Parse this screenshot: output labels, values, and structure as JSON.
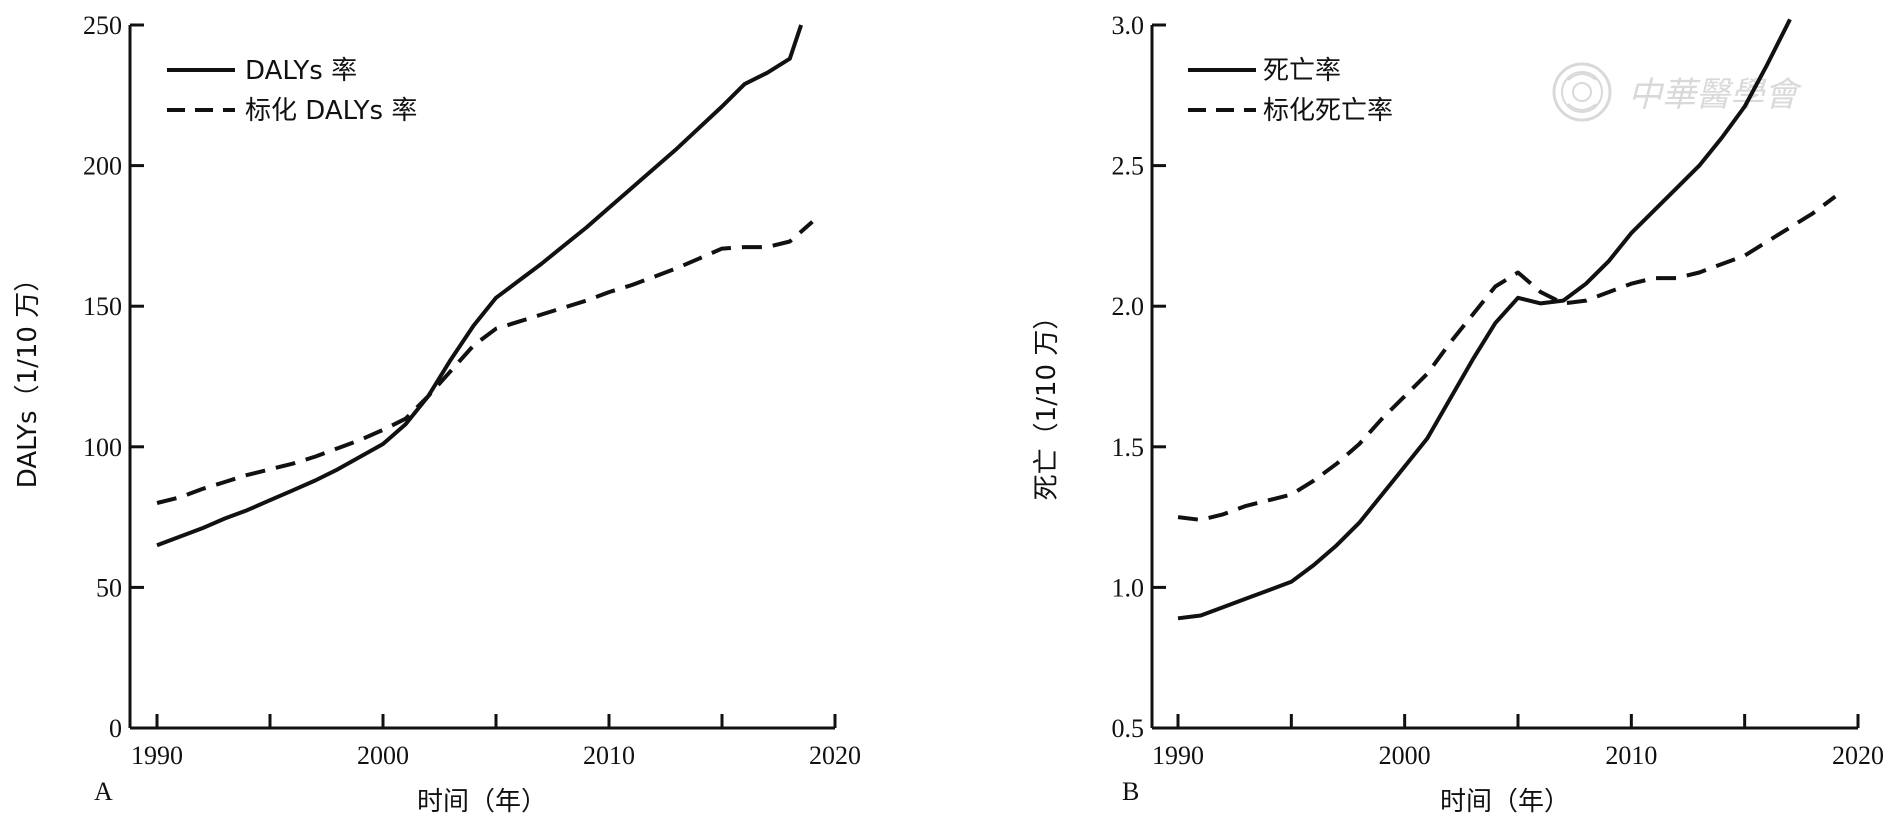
{
  "chart_data": [
    {
      "type": "line",
      "panel_label": "A",
      "xlabel": "时间（年）",
      "ylabel": "DALYs（1/10 万）",
      "xlim": [
        1990,
        2020
      ],
      "ylim": [
        0,
        250
      ],
      "xticks": [
        1990,
        2000,
        2010,
        2020
      ],
      "yticks": [
        0,
        50,
        100,
        150,
        200,
        250
      ],
      "legend_position": "top-left",
      "series": [
        {
          "name": "DALYs 率",
          "style": "solid",
          "color": "#111111",
          "x": [
            1990,
            1991,
            1992,
            1993,
            1994,
            1995,
            1996,
            1997,
            1998,
            1999,
            2000,
            2001,
            2002,
            2003,
            2004,
            2005,
            2006,
            2007,
            2008,
            2009,
            2010,
            2011,
            2012,
            2013,
            2014,
            2015,
            2016,
            2017,
            2018,
            2018.5
          ],
          "y": [
            65,
            68,
            71,
            74.5,
            77.5,
            81,
            84.5,
            88,
            92,
            96.5,
            101,
            108,
            118,
            131,
            143,
            153,
            159,
            165,
            171.5,
            178,
            185,
            192,
            199,
            206,
            213.5,
            221,
            229,
            233,
            238,
            250
          ]
        },
        {
          "name": "标化 DALYs 率",
          "style": "dashed",
          "color": "#111111",
          "x": [
            1990,
            1991,
            1992,
            1993,
            1994,
            1995,
            1996,
            1997,
            1998,
            1999,
            2000,
            2001,
            2002,
            2003,
            2004,
            2005,
            2006,
            2007,
            2008,
            2009,
            2010,
            2011,
            2012,
            2013,
            2014,
            2015,
            2016,
            2017,
            2018,
            2019
          ],
          "y": [
            80,
            82,
            85,
            87.5,
            90,
            92,
            94,
            96.5,
            99.5,
            102.5,
            106,
            110,
            118,
            127,
            136,
            142,
            144.5,
            147,
            149.5,
            152,
            155,
            157.5,
            160.5,
            163.5,
            167,
            170.5,
            171,
            171,
            173,
            180
          ]
        }
      ]
    },
    {
      "type": "line",
      "panel_label": "B",
      "xlabel": "时间（年）",
      "ylabel": "死亡（1/10 万）",
      "xlim": [
        1990,
        2020
      ],
      "ylim": [
        0.5,
        3.0
      ],
      "xticks": [
        1990,
        2000,
        2010,
        2020
      ],
      "yticks": [
        0.5,
        1.0,
        1.5,
        2.0,
        2.5,
        3.0
      ],
      "ytick_labels": [
        "0.5",
        "1.0",
        "1.5",
        "2.0",
        "2.5",
        "3.0"
      ],
      "legend_position": "top-left",
      "series": [
        {
          "name": "死亡率",
          "style": "solid",
          "color": "#111111",
          "x": [
            1990,
            1991,
            1992,
            1993,
            1994,
            1995,
            1996,
            1997,
            1998,
            1999,
            2000,
            2001,
            2002,
            2003,
            2004,
            2005,
            2006,
            2007,
            2008,
            2009,
            2010,
            2011,
            2012,
            2013,
            2014,
            2015,
            2016,
            2017
          ],
          "y": [
            0.89,
            0.9,
            0.93,
            0.96,
            0.99,
            1.02,
            1.08,
            1.15,
            1.23,
            1.33,
            1.43,
            1.53,
            1.67,
            1.81,
            1.94,
            2.03,
            2.01,
            2.02,
            2.08,
            2.16,
            2.26,
            2.34,
            2.42,
            2.5,
            2.6,
            2.71,
            2.86,
            3.02
          ]
        },
        {
          "name": "标化死亡率",
          "style": "dashed",
          "color": "#111111",
          "x": [
            1990,
            1991,
            1992,
            1993,
            1994,
            1995,
            1996,
            1997,
            1998,
            1999,
            2000,
            2001,
            2002,
            2003,
            2004,
            2005,
            2006,
            2007,
            2008,
            2009,
            2010,
            2011,
            2012,
            2013,
            2014,
            2015,
            2016,
            2017,
            2018,
            2019
          ],
          "y": [
            1.25,
            1.24,
            1.26,
            1.29,
            1.31,
            1.33,
            1.38,
            1.44,
            1.51,
            1.6,
            1.68,
            1.76,
            1.87,
            1.97,
            2.07,
            2.12,
            2.05,
            2.01,
            2.02,
            2.05,
            2.08,
            2.1,
            2.1,
            2.12,
            2.15,
            2.18,
            2.23,
            2.28,
            2.33,
            2.39
          ]
        }
      ]
    }
  ],
  "watermark": {
    "text": "中華醫學會",
    "icon": "society-seal-icon"
  }
}
